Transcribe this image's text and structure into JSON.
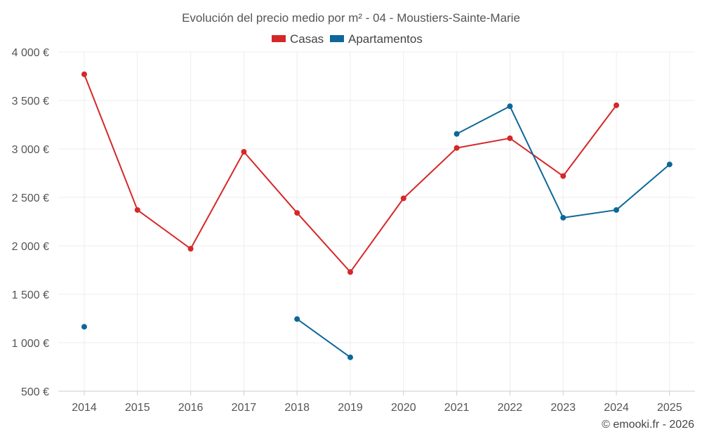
{
  "chart_data": {
    "type": "line",
    "title": "Evolución del precio medio por m² - 04 - Moustiers-Sainte-Marie",
    "xlabel": "",
    "ylabel": "",
    "categories": [
      "2014",
      "2015",
      "2016",
      "2017",
      "2018",
      "2019",
      "2020",
      "2021",
      "2022",
      "2023",
      "2024",
      "2025"
    ],
    "ylim": [
      500,
      4000
    ],
    "yticks": [
      500,
      1000,
      1500,
      2000,
      2500,
      3000,
      3500,
      4000
    ],
    "ytick_labels": [
      "500 €",
      "1 000 €",
      "1 500 €",
      "2 000 €",
      "2 500 €",
      "3 000 €",
      "3 500 €",
      "4 000 €"
    ],
    "grid": true,
    "legend_position": "top-center",
    "series": [
      {
        "name": "Casas",
        "color": "#d62728",
        "values": [
          3770,
          2370,
          1970,
          2970,
          2340,
          1730,
          2490,
          3010,
          3110,
          2720,
          3450,
          null
        ]
      },
      {
        "name": "Apartamentos",
        "color": "#0d6799",
        "values": [
          1165,
          null,
          null,
          null,
          1245,
          850,
          null,
          3155,
          3440,
          2290,
          2370,
          2840
        ]
      }
    ]
  },
  "credit": "© emooki.fr - 2026"
}
